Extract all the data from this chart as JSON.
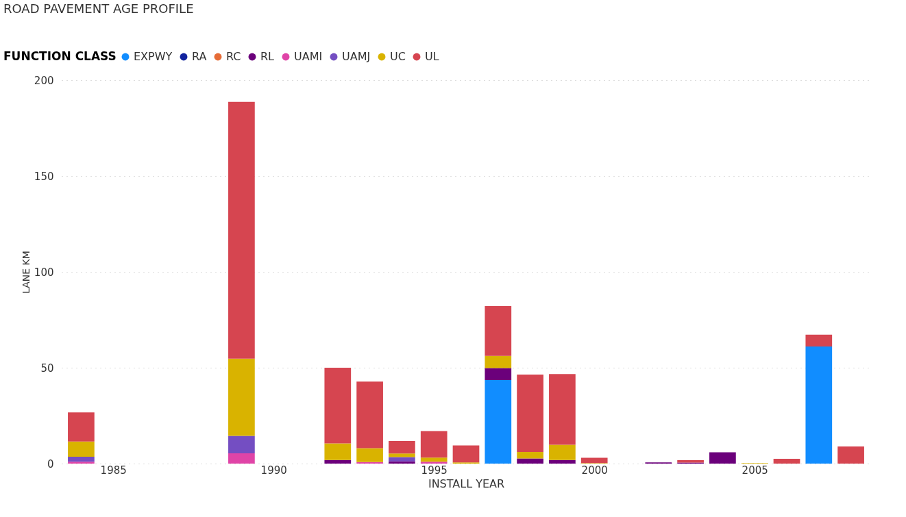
{
  "chart_data": {
    "type": "bar",
    "title": "ROAD PAVEMENT AGE PROFILE",
    "xlabel": "INSTALL YEAR",
    "ylabel": "LANE KM",
    "legend_title": "FUNCTION CLASS",
    "x": [
      1984,
      1989,
      1992,
      1993,
      1994,
      1995,
      1996,
      1997,
      1998,
      1999,
      2000,
      2002,
      2003,
      2004,
      2005,
      2006,
      2007,
      2008
    ],
    "stacked": true,
    "series": [
      {
        "name": "EXPWY",
        "color": "#118dff",
        "values": [
          null,
          null,
          null,
          null,
          null,
          null,
          null,
          43.6,
          null,
          null,
          null,
          null,
          null,
          null,
          null,
          null,
          61.1,
          null
        ]
      },
      {
        "name": "RA",
        "color": "#12239e",
        "values": [
          null,
          null,
          null,
          null,
          null,
          null,
          null,
          null,
          null,
          null,
          null,
          null,
          null,
          null,
          null,
          null,
          null,
          null
        ]
      },
      {
        "name": "RC",
        "color": "#e66c37",
        "values": [
          null,
          null,
          null,
          null,
          null,
          null,
          null,
          null,
          null,
          null,
          null,
          null,
          null,
          null,
          null,
          null,
          null,
          null
        ]
      },
      {
        "name": "RL",
        "color": "#6b007b",
        "values": [
          null,
          null,
          1.9,
          null,
          1.2,
          null,
          null,
          6.2,
          2.7,
          1.9,
          null,
          0.6,
          0.5,
          5.9,
          null,
          null,
          null,
          null
        ]
      },
      {
        "name": "UAMI",
        "color": "#e044a7",
        "values": [
          1.0,
          5.4,
          null,
          0.8,
          null,
          1.0,
          null,
          null,
          null,
          null,
          null,
          null,
          null,
          null,
          null,
          null,
          null,
          null
        ]
      },
      {
        "name": "UAMJ",
        "color": "#744ec2",
        "values": [
          2.6,
          9.1,
          null,
          null,
          2.2,
          null,
          null,
          null,
          null,
          null,
          null,
          null,
          null,
          null,
          null,
          null,
          null,
          null
        ]
      },
      {
        "name": "UC",
        "color": "#d9b300",
        "values": [
          7.9,
          40.2,
          8.6,
          7.2,
          1.9,
          2.1,
          0.6,
          6.4,
          3.4,
          7.9,
          0.3,
          null,
          null,
          null,
          0.3,
          null,
          null,
          null
        ]
      },
      {
        "name": "UL",
        "color": "#d64550",
        "values": [
          15.2,
          134.0,
          39.5,
          34.8,
          6.5,
          13.9,
          8.9,
          25.9,
          40.3,
          36.9,
          2.7,
          null,
          1.3,
          null,
          null,
          2.5,
          6.1,
          8.9
        ]
      }
    ],
    "xlim": [
      1983.5,
      2008.5
    ],
    "xticks": [
      1985,
      1990,
      1995,
      2000,
      2005
    ],
    "ylim": [
      0,
      200
    ],
    "yticks": [
      0,
      50,
      100,
      150,
      200
    ],
    "grid": "y",
    "legend": "top left"
  }
}
